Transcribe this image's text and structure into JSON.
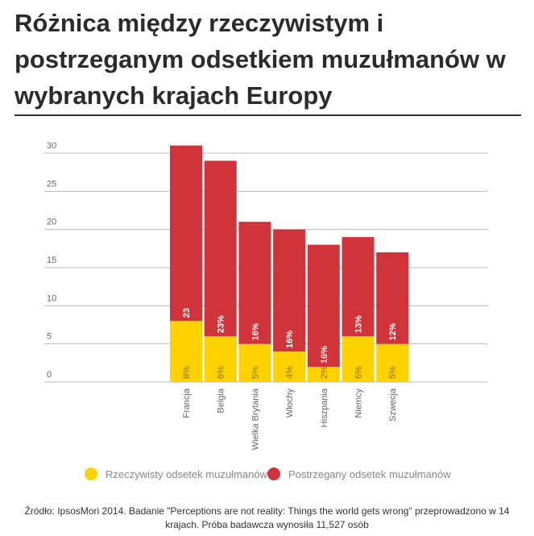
{
  "chart_data": {
    "type": "stacked_bar",
    "title": "Różnica między rzeczywistym i postrzeganym odsetkiem muzułmanów w wybranych krajach Europy",
    "categories": [
      "Francja",
      "Belgia",
      "Wielka Brytania",
      "Włochy",
      "Hiszpania",
      "Niemcy",
      "Szwecja"
    ],
    "series": [
      {
        "name": "Rzeczywisty odsetek muzułmanów",
        "color": "#ffd200",
        "values": [
          8,
          6,
          5,
          4,
          2,
          6,
          5
        ],
        "value_labels": [
          "8%",
          "6%",
          "5%",
          "4%",
          "2%",
          "6%",
          "5%"
        ]
      },
      {
        "name": "Postrzegany odsetek muzułmanów",
        "color": "#d0343a",
        "values": [
          23,
          23,
          16,
          16,
          16,
          13,
          12
        ],
        "value_labels": [
          "23",
          "23%",
          "16%",
          "16%",
          "16%",
          "13%",
          "12%"
        ]
      }
    ],
    "ylim": [
      0,
      30
    ],
    "yticks": [
      0,
      5,
      10,
      15,
      20,
      25,
      30
    ],
    "grid": true,
    "source": "Źródło: IpsosMori 2014. Badanie \"Perceptions are not reality: Things the world gets wrong\" przeprowadzono w 14 krajach. Próba badawcza wynosiła 11,527 osób"
  }
}
